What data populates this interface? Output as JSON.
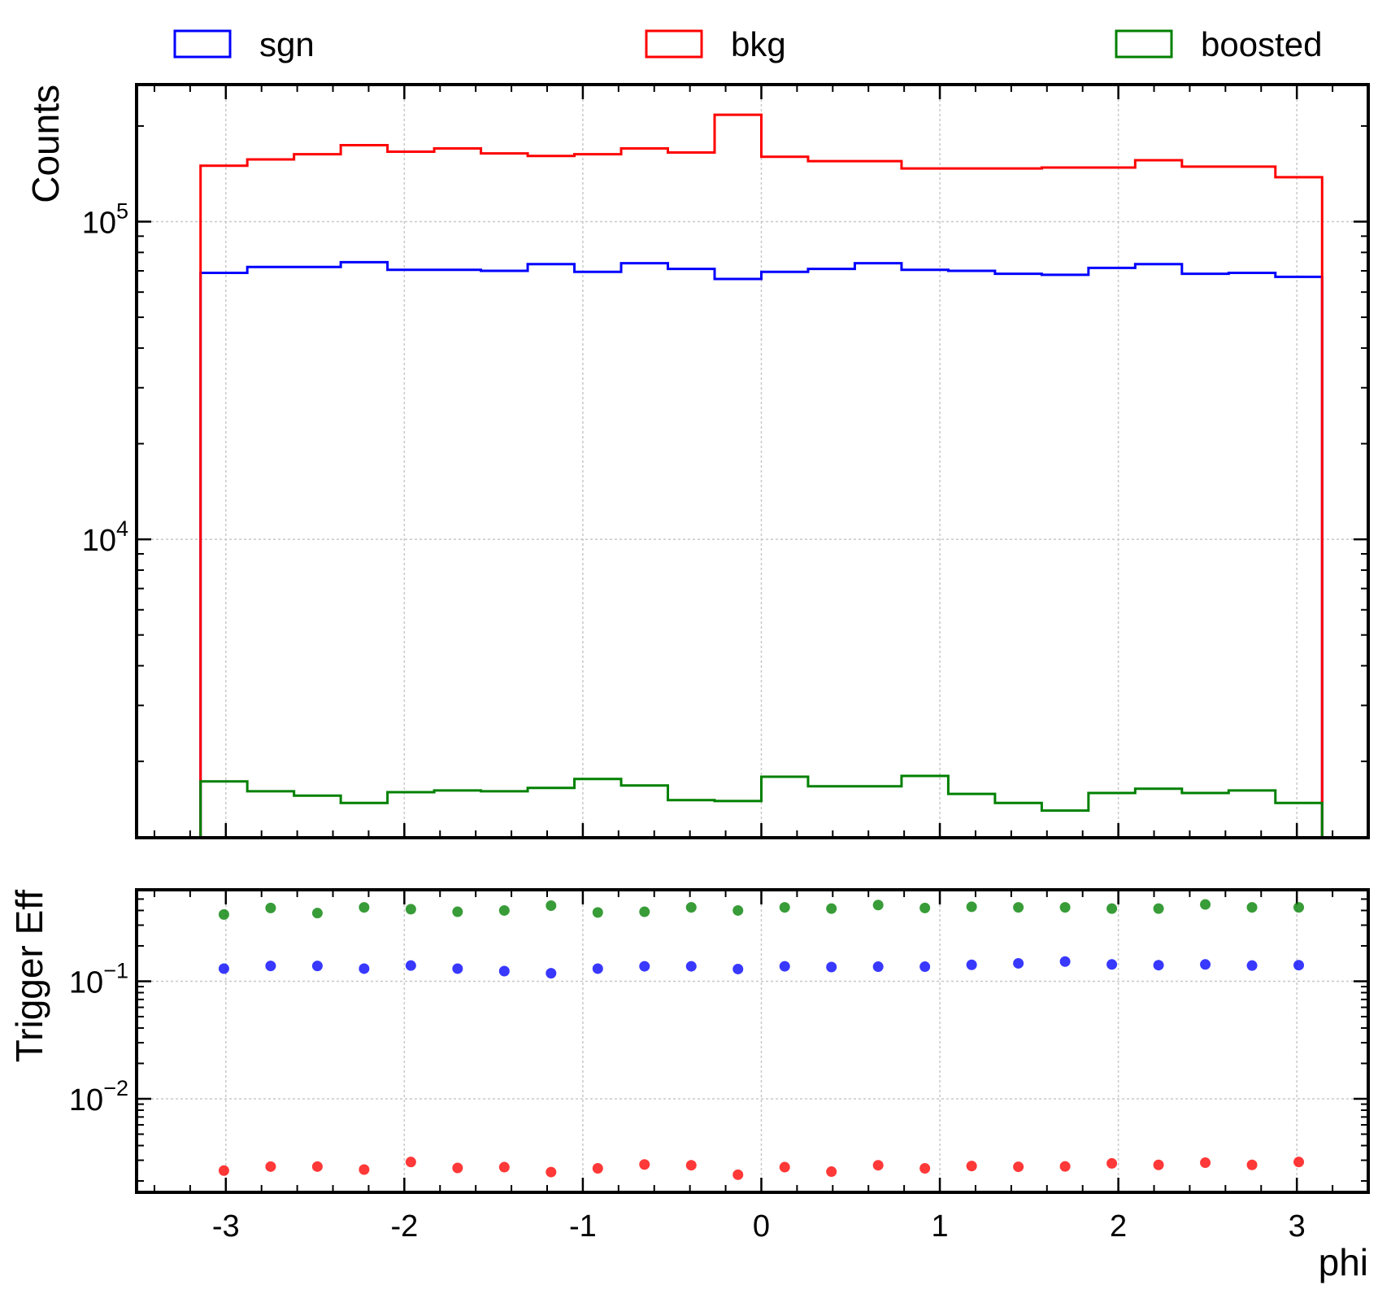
{
  "chart_data": [
    {
      "type": "step",
      "panel": "main",
      "yscale": "log",
      "ylabel": "Counts",
      "xlim": [
        -3.5,
        3.4
      ],
      "ylim": [
        1150,
        270000
      ],
      "y_ticks": [
        {
          "value": 100000,
          "base": "10",
          "exp": "5"
        },
        {
          "value": 10000,
          "base": "10",
          "exp": "4"
        }
      ],
      "grid": true,
      "legend_placement": "top",
      "bin_edges": [
        -3.1416,
        -2.8798,
        -2.618,
        -2.3562,
        -2.0944,
        -1.8326,
        -1.5708,
        -1.309,
        -1.0472,
        -0.7854,
        -0.5236,
        -0.2618,
        0.0,
        0.2618,
        0.5236,
        0.7854,
        1.0472,
        1.309,
        1.5708,
        1.8326,
        2.0944,
        2.3562,
        2.618,
        2.8798,
        3.1416
      ],
      "series": [
        {
          "name": "sgn",
          "color": "#0000ff",
          "values": [
            69000,
            72000,
            72000,
            74500,
            70500,
            70500,
            70000,
            73500,
            69500,
            74000,
            71000,
            66000,
            69500,
            71000,
            74000,
            70500,
            70000,
            68500,
            68000,
            71500,
            73500,
            68500,
            69000,
            67000
          ]
        },
        {
          "name": "bkg",
          "color": "#ff0000",
          "values": [
            150000,
            157000,
            163000,
            174000,
            166000,
            170000,
            164000,
            161000,
            163000,
            170000,
            165000,
            217000,
            160000,
            155000,
            155000,
            147000,
            147000,
            147000,
            148000,
            148000,
            156000,
            149000,
            149000,
            138000
          ]
        },
        {
          "name": "boosted",
          "color": "#008000",
          "values": [
            1730,
            1610,
            1560,
            1480,
            1600,
            1620,
            1610,
            1650,
            1760,
            1680,
            1510,
            1500,
            1790,
            1670,
            1670,
            1800,
            1580,
            1480,
            1400,
            1590,
            1640,
            1590,
            1620,
            1480
          ]
        }
      ]
    },
    {
      "type": "scatter",
      "panel": "ratio",
      "yscale": "log",
      "ylabel": "Trigger Eff",
      "xlabel": "phi",
      "xlim": [
        -3.5,
        3.4
      ],
      "ylim": [
        0.0016,
        0.6
      ],
      "y_ticks": [
        {
          "value": 0.1,
          "base": "10",
          "exp": "−1"
        },
        {
          "value": 0.01,
          "base": "10",
          "exp": "−2"
        }
      ],
      "x_ticks": [
        {
          "value": -3,
          "label": "-3"
        },
        {
          "value": -2,
          "label": "-2"
        },
        {
          "value": -1,
          "label": "-1"
        },
        {
          "value": 0,
          "label": "0"
        },
        {
          "value": 1,
          "label": "1"
        },
        {
          "value": 2,
          "label": "2"
        },
        {
          "value": 3,
          "label": "3"
        }
      ],
      "grid": true,
      "x": [
        -3.0107,
        -2.7489,
        -2.4871,
        -2.2253,
        -1.9635,
        -1.7017,
        -1.4399,
        -1.1781,
        -0.9163,
        -0.6545,
        -0.3927,
        -0.1309,
        0.1309,
        0.3927,
        0.6545,
        0.9163,
        1.1781,
        1.4399,
        1.7017,
        1.9635,
        2.2253,
        2.4871,
        2.7489,
        3.0107
      ],
      "series": [
        {
          "name": "sgn",
          "color": "#0000ff",
          "values": [
            0.128,
            0.135,
            0.135,
            0.128,
            0.136,
            0.128,
            0.122,
            0.117,
            0.128,
            0.134,
            0.134,
            0.127,
            0.134,
            0.132,
            0.133,
            0.133,
            0.138,
            0.142,
            0.147,
            0.139,
            0.137,
            0.139,
            0.136,
            0.137
          ]
        },
        {
          "name": "bkg",
          "color": "#ff0000",
          "values": [
            0.00245,
            0.00265,
            0.00265,
            0.0025,
            0.0029,
            0.00258,
            0.00262,
            0.00238,
            0.00256,
            0.00276,
            0.00272,
            0.00226,
            0.00262,
            0.0024,
            0.00272,
            0.00256,
            0.00268,
            0.00264,
            0.00266,
            0.00282,
            0.00274,
            0.00286,
            0.00274,
            0.0029
          ]
        },
        {
          "name": "boosted",
          "color": "#008000",
          "values": [
            0.37,
            0.42,
            0.38,
            0.425,
            0.41,
            0.39,
            0.4,
            0.44,
            0.385,
            0.39,
            0.425,
            0.4,
            0.425,
            0.415,
            0.445,
            0.42,
            0.43,
            0.425,
            0.425,
            0.415,
            0.415,
            0.45,
            0.425,
            0.425
          ]
        }
      ]
    }
  ]
}
